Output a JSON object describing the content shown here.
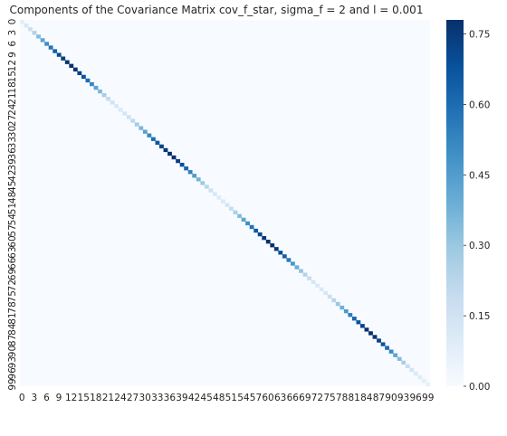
{
  "chart_data": {
    "type": "heatmap",
    "title": "Components of the Covariance Matrix cov_f_star, sigma_f = 2 and l = 0.001",
    "xlabel": "",
    "ylabel": "",
    "n": 100,
    "x_tick_labels": [
      "0",
      "3",
      "6",
      "9",
      "12",
      "15",
      "18",
      "21",
      "24",
      "27",
      "30",
      "33",
      "36",
      "39",
      "42",
      "45",
      "48",
      "51",
      "54",
      "57",
      "60",
      "63",
      "66",
      "69",
      "72",
      "75",
      "78",
      "81",
      "84",
      "87",
      "90",
      "93",
      "96",
      "99"
    ],
    "y_tick_labels": [
      "0",
      "3",
      "6",
      "9",
      "12",
      "15",
      "18",
      "21",
      "24",
      "27",
      "30",
      "33",
      "36",
      "39",
      "42",
      "45",
      "48",
      "51",
      "54",
      "57",
      "60",
      "63",
      "66",
      "69",
      "72",
      "75",
      "78",
      "81",
      "84",
      "87",
      "90",
      "93",
      "96",
      "99"
    ],
    "off_diagonal_value": 0.0,
    "diagonal_values": [
      0.08,
      0.12,
      0.17,
      0.25,
      0.34,
      0.42,
      0.5,
      0.58,
      0.64,
      0.7,
      0.74,
      0.77,
      0.78,
      0.77,
      0.73,
      0.68,
      0.6,
      0.52,
      0.43,
      0.35,
      0.27,
      0.2,
      0.15,
      0.12,
      0.11,
      0.13,
      0.16,
      0.21,
      0.28,
      0.36,
      0.44,
      0.52,
      0.6,
      0.67,
      0.72,
      0.76,
      0.78,
      0.77,
      0.74,
      0.69,
      0.62,
      0.54,
      0.45,
      0.37,
      0.29,
      0.22,
      0.16,
      0.12,
      0.1,
      0.11,
      0.14,
      0.19,
      0.26,
      0.34,
      0.42,
      0.5,
      0.58,
      0.65,
      0.71,
      0.75,
      0.78,
      0.78,
      0.75,
      0.7,
      0.64,
      0.56,
      0.47,
      0.39,
      0.31,
      0.24,
      0.18,
      0.13,
      0.11,
      0.11,
      0.13,
      0.17,
      0.23,
      0.3,
      0.38,
      0.46,
      0.54,
      0.62,
      0.68,
      0.73,
      0.77,
      0.78,
      0.77,
      0.73,
      0.67,
      0.6,
      0.51,
      0.42,
      0.34,
      0.26,
      0.19,
      0.14,
      0.11,
      0.1,
      0.08,
      0.06
    ],
    "colorbar": {
      "min": 0.0,
      "max": 0.78,
      "ticks": [
        "0.00",
        "0.15",
        "0.30",
        "0.45",
        "0.60",
        "0.75"
      ],
      "colormap": "Blues",
      "colors": [
        "#f7fbff",
        "#deebf7",
        "#c6dbef",
        "#9ecae1",
        "#6baed6",
        "#4292c6",
        "#2171b5",
        "#08519c",
        "#08306b"
      ]
    },
    "grid": false
  }
}
